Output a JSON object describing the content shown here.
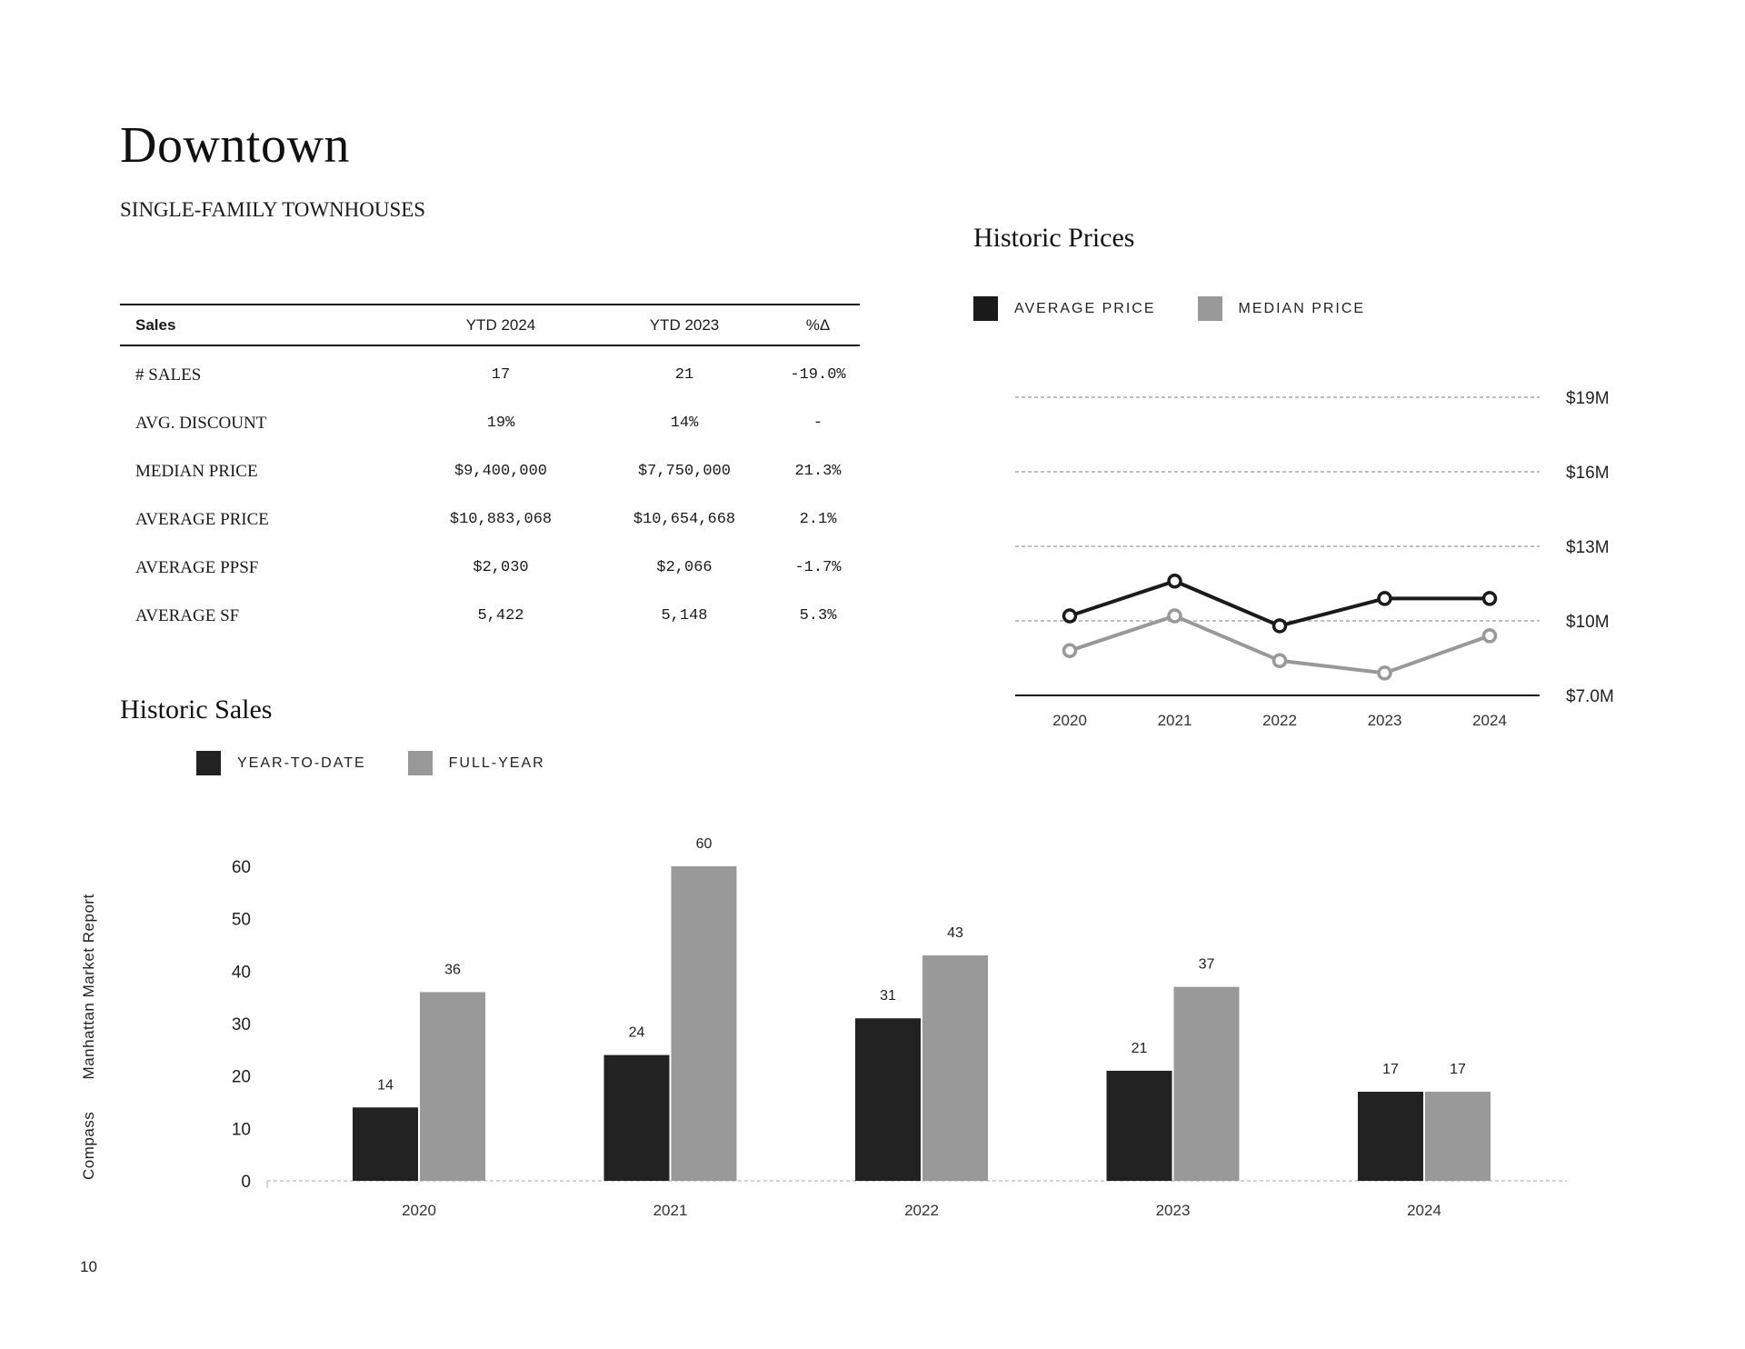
{
  "header": {
    "title": "Downtown",
    "subtitle": "SINGLE-FAMILY TOWNHOUSES"
  },
  "sales_table": {
    "headers": [
      "Sales",
      "YTD 2024",
      "YTD 2023",
      "%Δ"
    ],
    "rows": [
      {
        "label": "# SALES",
        "ytd2024": "17",
        "ytd2023": "21",
        "change": "-19.0%"
      },
      {
        "label": "AVG. DISCOUNT",
        "ytd2024": "19%",
        "ytd2023": "14%",
        "change": "-"
      },
      {
        "label": "MEDIAN PRICE",
        "ytd2024": "$9,400,000",
        "ytd2023": "$7,750,000",
        "change": "21.3%"
      },
      {
        "label": "AVERAGE PRICE",
        "ytd2024": "$10,883,068",
        "ytd2023": "$10,654,668",
        "change": "2.1%"
      },
      {
        "label": "AVERAGE PPSF",
        "ytd2024": "$2,030",
        "ytd2023": "$2,066",
        "change": "-1.7%"
      },
      {
        "label": "AVERAGE SF",
        "ytd2024": "5,422",
        "ytd2023": "5,148",
        "change": "5.3%"
      }
    ]
  },
  "chart_data": [
    {
      "type": "line",
      "title": "Historic Prices",
      "x": [
        "2020",
        "2021",
        "2022",
        "2023",
        "2024"
      ],
      "series": [
        {
          "name": "AVERAGE PRICE",
          "color": "#1a1a1a",
          "values": [
            10.2,
            11.6,
            9.8,
            10.9,
            10.9
          ]
        },
        {
          "name": "MEDIAN PRICE",
          "color": "#999999",
          "values": [
            8.8,
            10.2,
            8.4,
            7.9,
            9.4
          ]
        }
      ],
      "ylim": [
        7,
        19
      ],
      "yticks": [
        7,
        10,
        13,
        16,
        19
      ],
      "ytick_labels": [
        "$7.0M",
        "$10M",
        "$13M",
        "$16M",
        "$19M"
      ],
      "unit": "$M",
      "grid": true,
      "legend": "top-left"
    },
    {
      "type": "bar",
      "title": "Historic Sales",
      "categories": [
        "2020",
        "2021",
        "2022",
        "2023",
        "2024"
      ],
      "series": [
        {
          "name": "YEAR-TO-DATE",
          "color": "#222222",
          "values": [
            14,
            24,
            31,
            21,
            17
          ]
        },
        {
          "name": "FULL-YEAR",
          "color": "#999999",
          "values": [
            36,
            60,
            43,
            37,
            17
          ]
        }
      ],
      "ylim": [
        0,
        60
      ],
      "yticks": [
        0,
        10,
        20,
        30,
        40,
        50,
        60
      ],
      "legend": "top-left"
    }
  ],
  "footer": {
    "side_brand": "Compass",
    "side_report": "Manhattan Market Report",
    "page_number": "10"
  }
}
